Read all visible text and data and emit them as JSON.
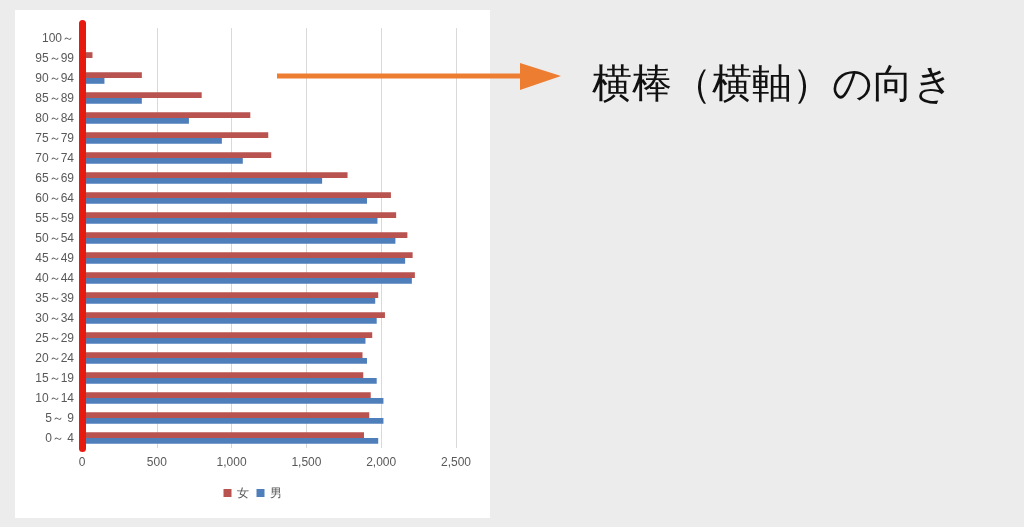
{
  "chart_data": {
    "type": "bar",
    "orientation": "horizontal",
    "categories": [
      "100～",
      "95～99",
      "90～94",
      "85～89",
      "80～84",
      "75～79",
      "70～74",
      "65～69",
      "60～64",
      "55～59",
      "50～54",
      "45～49",
      "40～44",
      "35～39",
      "30～34",
      "25～29",
      "20～24",
      "15～19",
      "10～14",
      "5～ 9",
      "0～ 4"
    ],
    "series": [
      {
        "name": "女",
        "color": "#b9534f",
        "values": [
          0,
          70,
          400,
          800,
          1125,
          1245,
          1265,
          1775,
          2065,
          2100,
          2175,
          2210,
          2225,
          1980,
          2025,
          1940,
          1875,
          1880,
          1930,
          1920,
          1885
        ]
      },
      {
        "name": "男",
        "color": "#4f7fbb",
        "values": [
          0,
          0,
          150,
          400,
          715,
          935,
          1075,
          1605,
          1905,
          1975,
          2095,
          2160,
          2205,
          1960,
          1970,
          1895,
          1905,
          1970,
          2015,
          2015,
          1980
        ]
      }
    ],
    "xlim": [
      0,
      2500
    ],
    "xticks": [
      0,
      500,
      {
        "value": 1000,
        "label": "1,000"
      },
      {
        "value": 1500,
        "label": "1,500"
      },
      {
        "value": 2000,
        "label": "2,000"
      },
      {
        "value": 2500,
        "label": "2,500"
      }
    ],
    "grid": "x",
    "legend": "bottom",
    "annotations": [
      "横棒（横軸）の向き"
    ]
  }
}
